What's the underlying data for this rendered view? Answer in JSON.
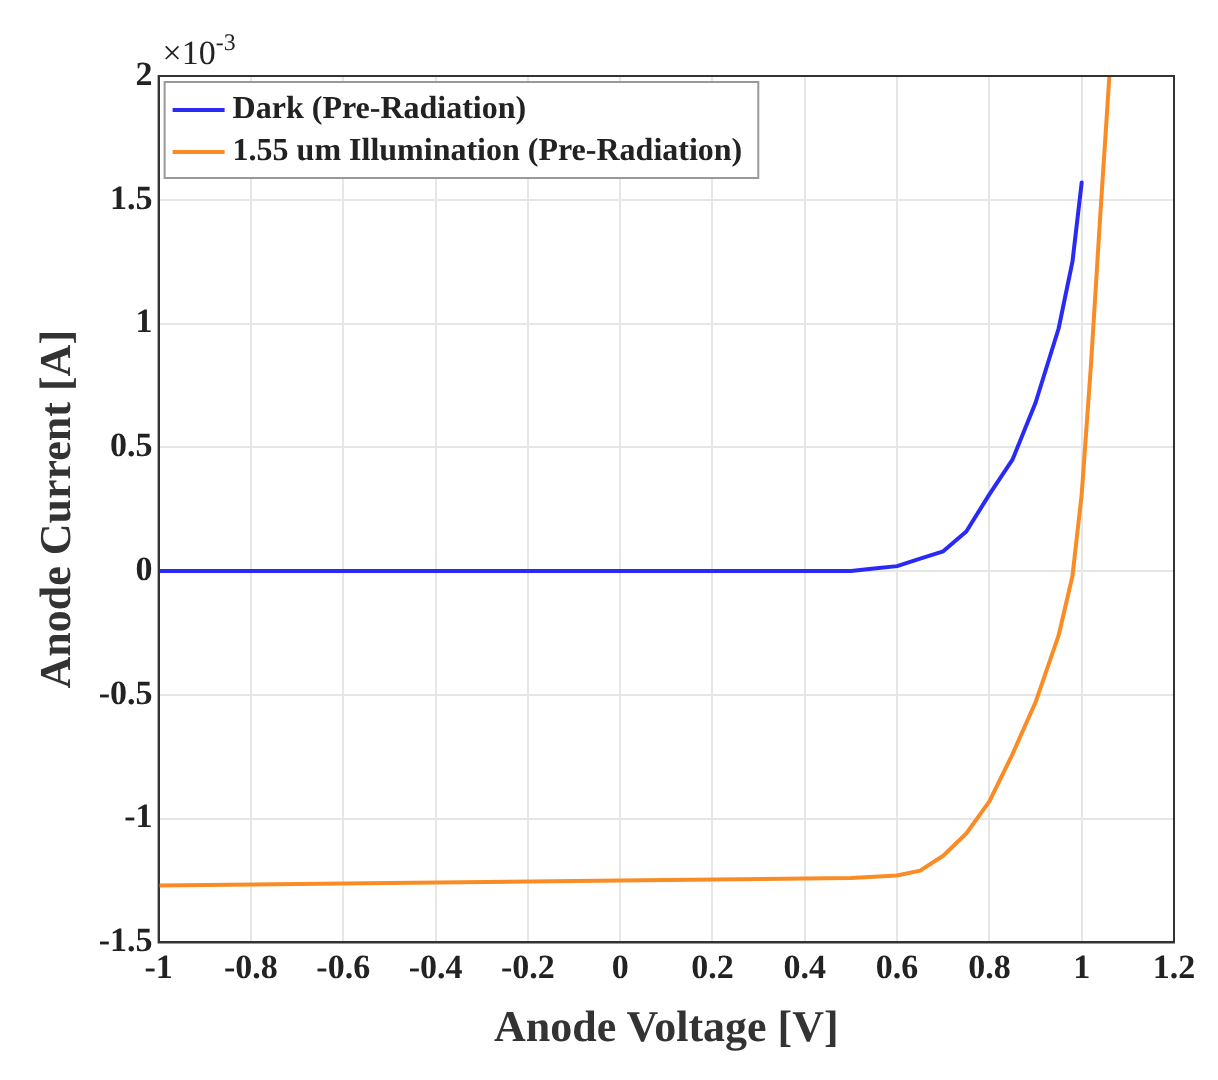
{
  "chart_data": {
    "type": "line",
    "xlabel": "Anode Voltage [V]",
    "ylabel": "Anode Current [A]",
    "annotations": [
      "×10$^{-3}$"
    ],
    "xlim": [
      -1,
      1.2
    ],
    "xticks": [
      -1,
      -0.8,
      -0.6,
      -0.4,
      -0.2,
      0,
      0.2,
      0.4,
      0.6,
      0.8,
      1,
      1.2
    ],
    "ylim": [
      -1.5,
      2
    ],
    "yticks": [
      -1.5,
      -1,
      -0.5,
      0,
      0.5,
      1,
      1.5,
      2
    ],
    "grid": true,
    "legend": "top left",
    "marker": "none",
    "line_style": "solid",
    "series": [
      {
        "name": "Dark (Pre-Radiation)",
        "color": "#2a2af5",
        "x": [
          -1,
          -0.5,
          0,
          0.5,
          0.55,
          0.6,
          0.65,
          0.7,
          0.75,
          0.8,
          0.85,
          0.9,
          0.95,
          0.98,
          1.0
        ],
        "values": [
          0,
          0,
          0,
          0,
          0.01,
          0.02,
          0.05,
          0.08,
          0.16,
          0.31,
          0.45,
          0.68,
          0.98,
          1.25,
          1.57
        ]
      },
      {
        "name": "1.55 um Illumination (Pre-Radiation)",
        "color": "#f98c25",
        "x": [
          -1,
          -0.5,
          0,
          0.5,
          0.6,
          0.65,
          0.7,
          0.75,
          0.8,
          0.85,
          0.9,
          0.95,
          0.98,
          1.0,
          1.02,
          1.04,
          1.06
        ],
        "values": [
          -1.27,
          -1.26,
          -1.25,
          -1.24,
          -1.23,
          -1.21,
          -1.15,
          -1.06,
          -0.93,
          -0.74,
          -0.53,
          -0.26,
          -0.02,
          0.31,
          0.83,
          1.43,
          2.0
        ]
      }
    ]
  }
}
